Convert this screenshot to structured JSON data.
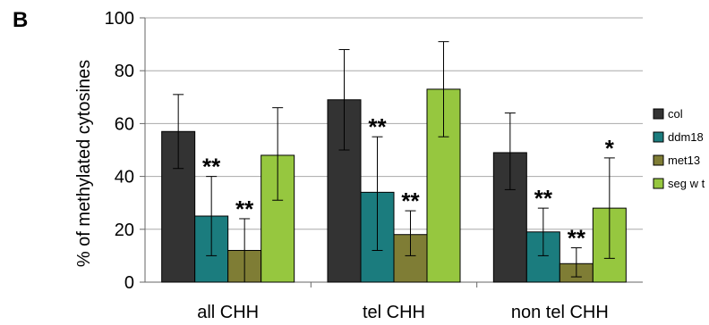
{
  "panel_label": "B",
  "chart_data": {
    "type": "bar",
    "title": "",
    "xlabel": "",
    "ylabel": "% of methylated cytosines",
    "ylim": [
      0,
      100
    ],
    "yticks": [
      0,
      20,
      40,
      60,
      80,
      100
    ],
    "grid": true,
    "legend_position": "right",
    "categories": [
      "all CHH",
      "tel CHH",
      "non tel CHH"
    ],
    "series": [
      {
        "name": "col",
        "color": "#333333",
        "values": [
          57,
          69,
          49
        ],
        "err_low": [
          43,
          50,
          35
        ],
        "err_high": [
          71,
          88,
          64
        ],
        "annotations": [
          "",
          "",
          ""
        ]
      },
      {
        "name": "ddm18",
        "color": "#1b7c7e",
        "values": [
          25,
          34,
          19
        ],
        "err_low": [
          10,
          12,
          10
        ],
        "err_high": [
          40,
          55,
          28
        ],
        "annotations": [
          "**",
          "**",
          "**"
        ]
      },
      {
        "name": "met13",
        "color": "#7f7d35",
        "values": [
          12,
          18,
          7
        ],
        "err_low": [
          0,
          10,
          2
        ],
        "err_high": [
          24,
          27,
          13
        ],
        "annotations": [
          "**",
          "**",
          "**"
        ]
      },
      {
        "name": "seg w t",
        "color": "#96c73f",
        "values": [
          48,
          73,
          28
        ],
        "err_low": [
          31,
          55,
          9
        ],
        "err_high": [
          66,
          91,
          47
        ],
        "annotations": [
          "",
          "",
          "*"
        ]
      }
    ]
  }
}
